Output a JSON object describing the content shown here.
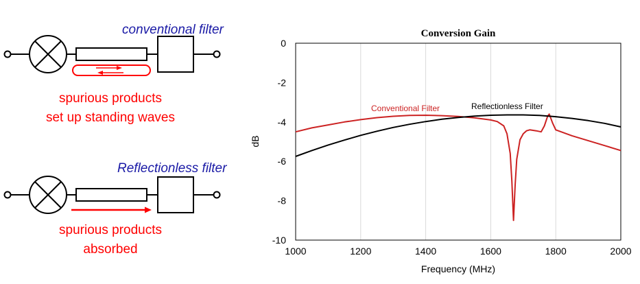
{
  "diagram": {
    "top": {
      "label": "conventional filter",
      "caption_line1": "spurious products",
      "caption_line2": "set up standing waves"
    },
    "bottom": {
      "label": "Reflectionless filter",
      "caption_line1": "spurious products",
      "caption_line2": "absorbed"
    },
    "colors": {
      "label": "#1a1aa6",
      "spurious": "#ff0000",
      "wire": "#000000"
    }
  },
  "chart_data": {
    "type": "line",
    "title": "Conversion Gain",
    "xlabel": "Frequency (MHz)",
    "ylabel": "dB",
    "xlim": [
      1000,
      2000
    ],
    "ylim": [
      -10,
      0
    ],
    "xticks": [
      "1000",
      "1200",
      "1400",
      "1600",
      "1800",
      "2000"
    ],
    "yticks": [
      "0",
      "-2",
      "-4",
      "-6",
      "-8",
      "-10"
    ],
    "grid": "vertical",
    "series": [
      {
        "name": "Conventional Filter",
        "color": "#cc2222",
        "x": [
          1000,
          1050,
          1100,
          1150,
          1200,
          1250,
          1300,
          1350,
          1400,
          1450,
          1500,
          1550,
          1600,
          1620,
          1640,
          1650,
          1660,
          1665,
          1670,
          1675,
          1680,
          1690,
          1700,
          1710,
          1720,
          1740,
          1755,
          1765,
          1775,
          1780,
          1790,
          1800,
          1850,
          1900,
          1950,
          2000
        ],
        "y": [
          -4.5,
          -4.3,
          -4.15,
          -4.0,
          -3.88,
          -3.78,
          -3.71,
          -3.67,
          -3.66,
          -3.68,
          -3.72,
          -3.79,
          -3.9,
          -3.98,
          -4.2,
          -4.6,
          -5.6,
          -7.0,
          -9.0,
          -7.2,
          -5.9,
          -4.9,
          -4.6,
          -4.45,
          -4.4,
          -4.45,
          -4.5,
          -4.2,
          -3.7,
          -3.6,
          -4.05,
          -4.4,
          -4.7,
          -4.95,
          -5.2,
          -5.45
        ]
      },
      {
        "name": "Reflectionless Filter",
        "color": "#000000",
        "x": [
          1000,
          1050,
          1100,
          1150,
          1200,
          1250,
          1300,
          1350,
          1400,
          1450,
          1500,
          1550,
          1600,
          1650,
          1700,
          1750,
          1800,
          1850,
          1900,
          1950,
          2000
        ],
        "y": [
          -5.75,
          -5.45,
          -5.17,
          -4.92,
          -4.68,
          -4.47,
          -4.28,
          -4.12,
          -3.98,
          -3.86,
          -3.77,
          -3.7,
          -3.66,
          -3.64,
          -3.64,
          -3.67,
          -3.73,
          -3.82,
          -3.93,
          -4.07,
          -4.25
        ]
      }
    ]
  }
}
